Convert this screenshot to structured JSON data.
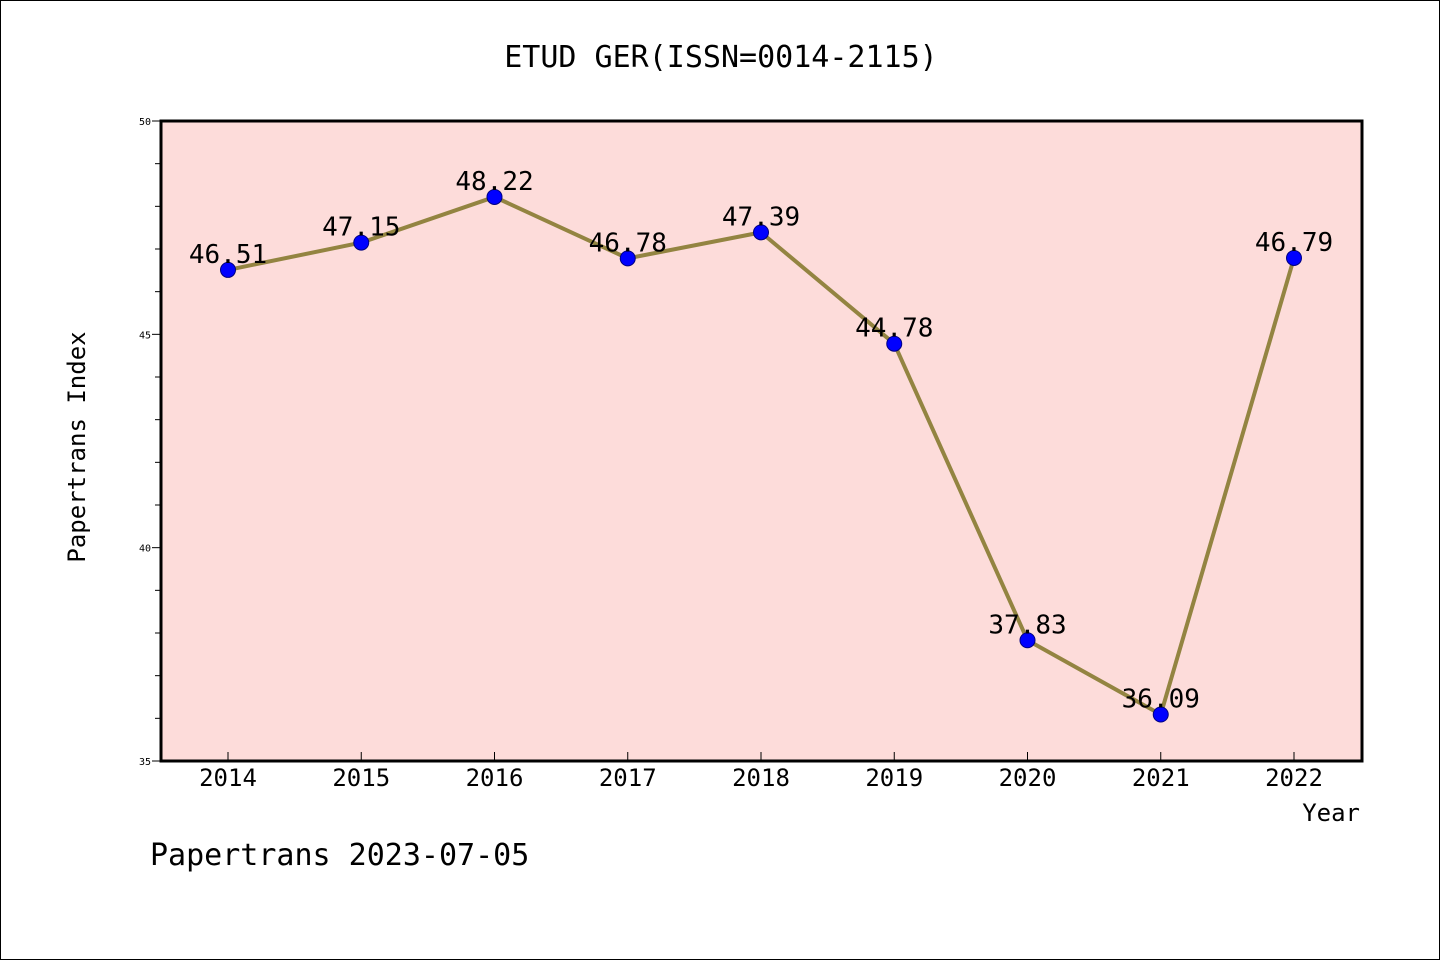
{
  "chart_data": {
    "type": "line",
    "title": "ETUD GER(ISSN=0014-2115)",
    "xlabel": "Year",
    "ylabel": "Papertrans Index",
    "categories": [
      "2014",
      "2015",
      "2016",
      "2017",
      "2018",
      "2019",
      "2020",
      "2021",
      "2022"
    ],
    "values": [
      46.51,
      47.15,
      48.22,
      46.78,
      47.39,
      44.78,
      37.83,
      36.09,
      46.79
    ],
    "data_labels": [
      "46.51",
      "47.15",
      "48.22",
      "46.78",
      "47.39",
      "44.78",
      "37.83",
      "36.09",
      "46.79"
    ],
    "ylim": [
      35,
      50
    ],
    "y_major_ticks": [
      35,
      40,
      45,
      50
    ],
    "y_minor_step": 1,
    "grid": false,
    "legend": "none",
    "colors": {
      "plot_background": "#fddcda",
      "line": "#938441",
      "marker": "#0000ff",
      "marker_edge": "#000080"
    }
  },
  "footer": {
    "text": "Papertrans 2023-07-05"
  }
}
